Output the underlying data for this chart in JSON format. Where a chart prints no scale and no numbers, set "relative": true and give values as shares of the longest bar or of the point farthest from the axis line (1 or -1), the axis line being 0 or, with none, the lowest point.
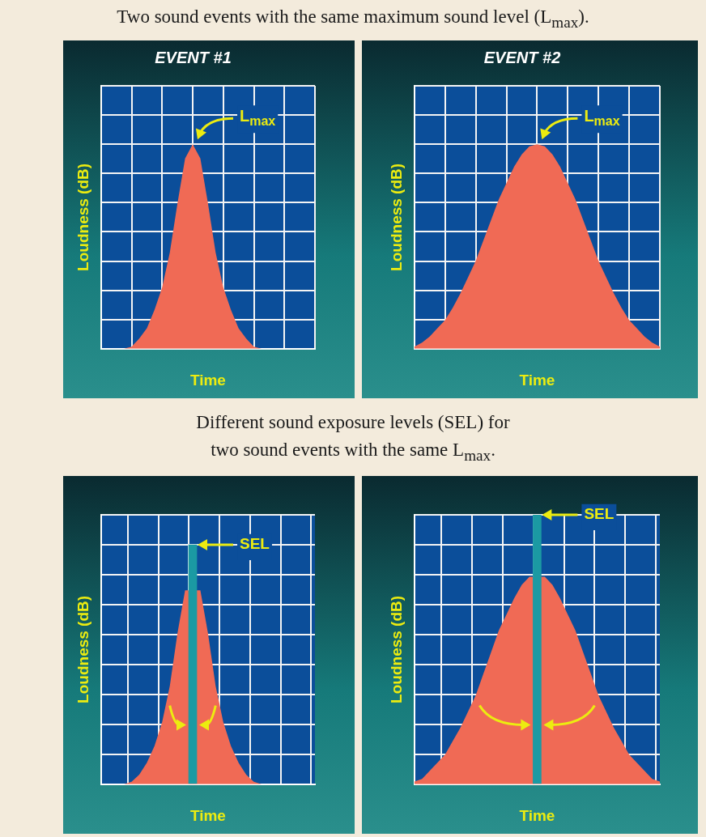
{
  "chart_data": [
    {
      "type": "area",
      "title": "EVENT #1",
      "subtitle": "Two sound events with the same maximum sound level (L$_{max}$).",
      "xlabel": "Time",
      "ylabel": "Loudness (dB)",
      "relative": true,
      "grid": true,
      "legend": false,
      "categories": [
        null,
        null,
        null,
        null,
        null,
        null,
        null,
        null,
        null,
        null,
        null,
        null,
        null,
        null,
        null,
        null,
        null,
        null,
        null,
        null,
        null,
        null,
        null,
        null,
        null,
        null,
        null,
        null,
        null
      ],
      "series": [
        {
          "color": "#f06a55",
          "values": [
            0,
            0,
            0,
            0,
            0.01,
            0.05,
            0.1,
            0.19,
            0.3,
            0.47,
            0.71,
            0.93,
            1,
            0.93,
            0.71,
            0.47,
            0.3,
            0.19,
            0.1,
            0.05,
            0.01,
            0,
            0,
            0,
            0,
            0,
            0,
            0,
            0
          ]
        }
      ],
      "annotations": [
        "L$_{max}$"
      ]
    },
    {
      "type": "area",
      "title": "EVENT #2",
      "xlabel": "Time",
      "ylabel": "Loudness (dB)",
      "relative": true,
      "grid": true,
      "legend": false,
      "categories": [
        null,
        null,
        null,
        null,
        null,
        null,
        null,
        null,
        null,
        null,
        null,
        null,
        null,
        null,
        null,
        null,
        null,
        null,
        null,
        null,
        null,
        null,
        null,
        null,
        null,
        null,
        null,
        null,
        null,
        null,
        null,
        null,
        null
      ],
      "series": [
        {
          "color": "#f06a55",
          "values": [
            0.01,
            0.03,
            0.06,
            0.1,
            0.14,
            0.2,
            0.27,
            0.35,
            0.43,
            0.53,
            0.63,
            0.73,
            0.81,
            0.89,
            0.95,
            0.99,
            1,
            0.99,
            0.95,
            0.89,
            0.81,
            0.73,
            0.63,
            0.53,
            0.43,
            0.35,
            0.27,
            0.2,
            0.14,
            0.1,
            0.06,
            0.03,
            0.01
          ]
        }
      ],
      "annotations": [
        "L$_{max}$"
      ]
    },
    {
      "type": "area",
      "subtitle": "Different sound exposure levels (SEL) for\ntwo sound events with the same L$_{max}$.",
      "xlabel": "Time",
      "ylabel": "Loudness (dB)",
      "relative": true,
      "grid": true,
      "legend": false,
      "categories": [
        null,
        null,
        null,
        null,
        null,
        null,
        null,
        null,
        null,
        null,
        null,
        null,
        null,
        null,
        null,
        null,
        null,
        null,
        null,
        null,
        null,
        null,
        null,
        null,
        null,
        null,
        null,
        null,
        null
      ],
      "series": [
        {
          "color": "#f06a55",
          "values": [
            0,
            0,
            0,
            0,
            0.01,
            0.04,
            0.09,
            0.16,
            0.26,
            0.41,
            0.63,
            0.81,
            null,
            0.81,
            0.63,
            0.41,
            0.26,
            0.16,
            0.09,
            0.04,
            0.01,
            0,
            0,
            0,
            0,
            0,
            0,
            0,
            0
          ]
        },
        {
          "type": "bar",
          "color": "#1b9aa3",
          "values": [
            null,
            null,
            null,
            null,
            null,
            null,
            null,
            null,
            null,
            null,
            null,
            null,
            1,
            null,
            null,
            null,
            null,
            null,
            null,
            null,
            null,
            null,
            null,
            null,
            null,
            null,
            null,
            null,
            null
          ]
        }
      ],
      "annotations": [
        "SEL"
      ]
    },
    {
      "type": "area",
      "xlabel": "Time",
      "ylabel": "Loudness (dB)",
      "relative": true,
      "grid": true,
      "legend": false,
      "categories": [
        null,
        null,
        null,
        null,
        null,
        null,
        null,
        null,
        null,
        null,
        null,
        null,
        null,
        null,
        null,
        null,
        null,
        null,
        null,
        null,
        null,
        null,
        null,
        null,
        null,
        null,
        null,
        null,
        null,
        null,
        null,
        null,
        null
      ],
      "series": [
        {
          "color": "#f06a55",
          "values": [
            0.01,
            0.02,
            0.05,
            0.08,
            0.11,
            0.16,
            0.21,
            0.27,
            0.33,
            0.41,
            0.49,
            0.57,
            0.63,
            0.69,
            0.74,
            0.77,
            null,
            0.77,
            0.74,
            0.69,
            0.63,
            0.57,
            0.49,
            0.41,
            0.33,
            0.27,
            0.21,
            0.16,
            0.11,
            0.08,
            0.05,
            0.02,
            0.01
          ]
        },
        {
          "type": "bar",
          "color": "#1b9aa3",
          "values": [
            null,
            null,
            null,
            null,
            null,
            null,
            null,
            null,
            null,
            null,
            null,
            null,
            null,
            null,
            null,
            null,
            1,
            null,
            null,
            null,
            null,
            null,
            null,
            null,
            null,
            null,
            null,
            null,
            null,
            null,
            null,
            null,
            null
          ]
        }
      ],
      "annotations": [
        "SEL"
      ]
    }
  ]
}
